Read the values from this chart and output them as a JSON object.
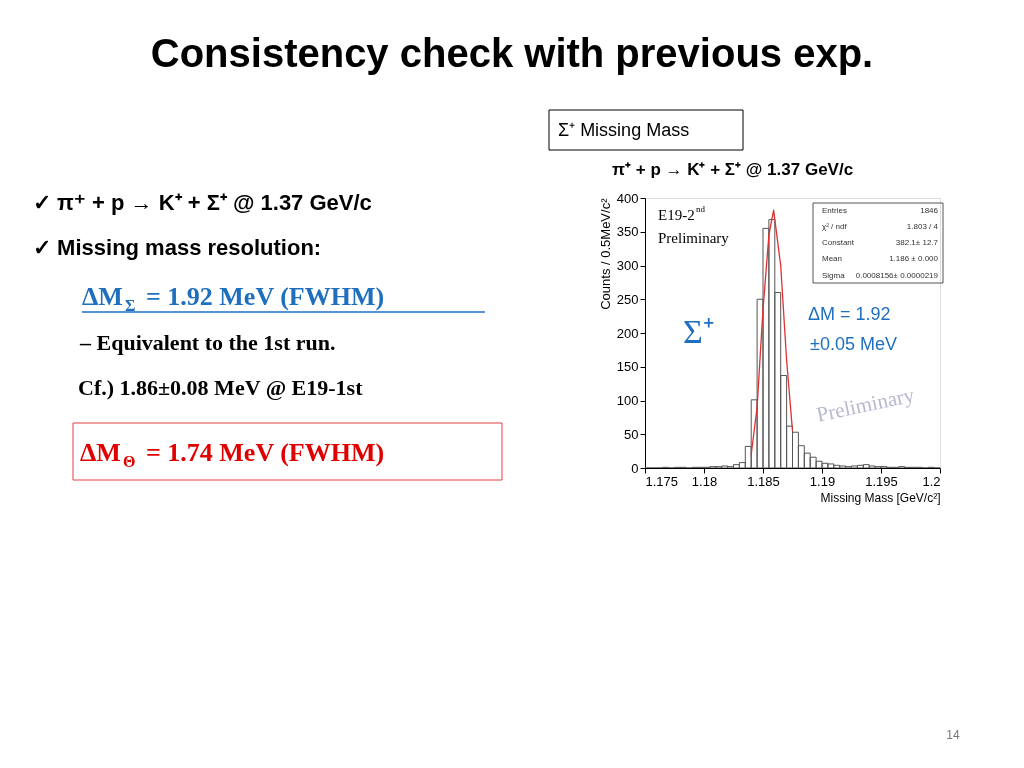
{
  "chart_data": {
    "type": "histogram",
    "title": "Consistency check with previous exp.",
    "xlabel": "Missing Mass [GeV/c²]",
    "ylabel": "Counts / 0.5MeV/c²",
    "bins": [
      1.175,
      1.1755,
      1.176,
      1.1765,
      1.177,
      1.1775,
      1.178,
      1.1785,
      1.179,
      1.1795,
      1.18,
      1.1805,
      1.181,
      1.1815,
      1.182,
      1.1825,
      1.183,
      1.1835,
      1.184,
      1.1845,
      1.185,
      1.1855,
      1.186,
      1.1865,
      1.187,
      1.1875,
      1.188,
      1.1885,
      1.189,
      1.1895,
      1.19,
      1.1905,
      1.191,
      1.1915,
      1.192,
      1.1925,
      1.193,
      1.1935,
      1.194,
      1.1945,
      1.195,
      1.1955,
      1.196,
      1.1965,
      1.197,
      1.1975,
      1.198,
      1.1985,
      1.199,
      1.1995,
      1.2
    ],
    "values": [
      0,
      0,
      0,
      1,
      0,
      1,
      1,
      0,
      1,
      1,
      1,
      2,
      2,
      3,
      2,
      5,
      8,
      32,
      101,
      250,
      355,
      368,
      260,
      137,
      62,
      53,
      33,
      22,
      16,
      10,
      7,
      6,
      4,
      3,
      2,
      3,
      4,
      5,
      3,
      2,
      2,
      1,
      1,
      2,
      1,
      1,
      1,
      0,
      1,
      0
    ],
    "color": "#555555",
    "series": [
      {
        "type": "line",
        "color": "#e03030",
        "x": [
          1.184,
          1.1845,
          1.185,
          1.1855,
          1.1859,
          1.1865,
          1.187,
          1.1875
        ],
        "values": [
          20,
          90,
          235,
          345,
          382,
          300,
          160,
          55
        ]
      }
    ],
    "xlim": [
      1.175,
      1.2
    ],
    "xticks": [
      1.175,
      1.18,
      1.185,
      1.19,
      1.195,
      1.2
    ],
    "ylim": [
      0,
      400
    ],
    "yticks": [
      0,
      50,
      100,
      150,
      200,
      250,
      300,
      350,
      400
    ],
    "grid": false,
    "annotations": [
      "✓  π⁺ + p → K⁺ + Σ⁺   @ 1.37 GeV/c",
      "✓  Missing mass resolution:",
      "ΔM$_{Σ}$ =  1.92  MeV (FWHM)",
      "–  Equivalent to the 1st run.",
      "Cf.)  1.86±0.08 MeV @  E19-1st",
      "ΔM$_{Θ}$ =  1.74  MeV (FWHM)",
      "Σ⁺ Missing Mass",
      "π⁺ + p → K⁺ + Σ⁺  @ 1.37 GeV/c",
      "E19-2$^{nd}$",
      "Preliminary",
      "Entries",
      "1846",
      "χ² / ndf",
      "1.803 / 4",
      "Constant",
      "382.1± 12.7",
      "Mean",
      "1.186 ± 0.000",
      "Sigma",
      "0.0008156± 0.0000219",
      "Σ⁺",
      "ΔM = 1.92",
      "±0.05 MeV",
      "Preliminary",
      "14"
    ]
  }
}
